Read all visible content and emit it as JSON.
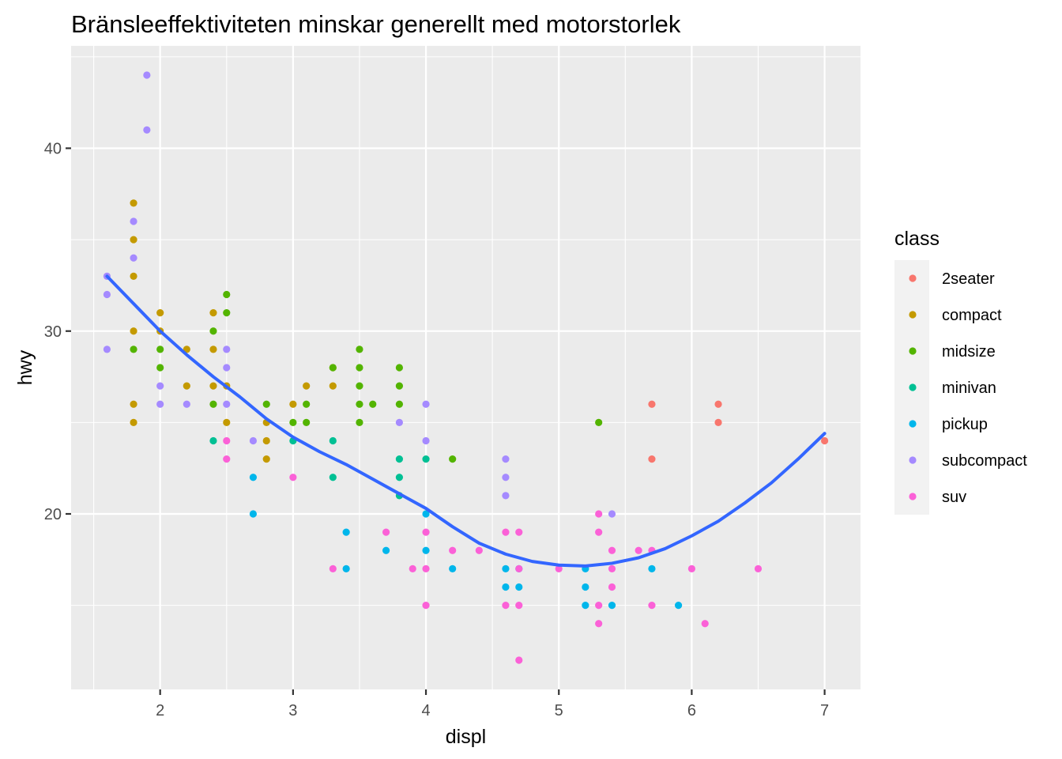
{
  "chart_data": {
    "type": "scatter",
    "title": "Bränsleeffektiviteten minskar generellt med motorstorlek",
    "xlabel": "displ",
    "ylabel": "hwy",
    "xlim": [
      1.33,
      7.27
    ],
    "ylim": [
      10.4,
      45.6
    ],
    "x_ticks": [
      2,
      3,
      4,
      5,
      6,
      7
    ],
    "y_ticks": [
      20,
      30,
      40
    ],
    "grid": true,
    "legend": {
      "title": "class",
      "position": "right"
    },
    "series": [
      {
        "name": "2seater",
        "color": "#F8766D",
        "points": [
          [
            5.7,
            26
          ],
          [
            5.7,
            23
          ],
          [
            6.2,
            26
          ],
          [
            6.2,
            25
          ],
          [
            7.0,
            24
          ]
        ]
      },
      {
        "name": "compact",
        "color": "#C49A00",
        "points": [
          [
            1.8,
            37
          ],
          [
            1.8,
            35
          ],
          [
            1.8,
            33
          ],
          [
            1.8,
            30
          ],
          [
            1.8,
            26
          ],
          [
            1.8,
            25
          ],
          [
            2.0,
            31
          ],
          [
            2.0,
            30
          ],
          [
            2.2,
            29
          ],
          [
            2.2,
            27
          ],
          [
            2.4,
            31
          ],
          [
            2.4,
            29
          ],
          [
            2.4,
            27
          ],
          [
            2.5,
            27
          ],
          [
            2.5,
            25
          ],
          [
            2.8,
            25
          ],
          [
            2.8,
            24
          ],
          [
            2.8,
            23
          ],
          [
            3.0,
            26
          ],
          [
            3.1,
            27
          ],
          [
            3.3,
            28
          ],
          [
            3.3,
            27
          ]
        ]
      },
      {
        "name": "midsize",
        "color": "#53B400",
        "points": [
          [
            1.8,
            29
          ],
          [
            2.0,
            29
          ],
          [
            2.0,
            28
          ],
          [
            2.4,
            30
          ],
          [
            2.4,
            26
          ],
          [
            2.5,
            32
          ],
          [
            2.5,
            31
          ],
          [
            2.8,
            26
          ],
          [
            3.0,
            25
          ],
          [
            3.1,
            26
          ],
          [
            3.1,
            25
          ],
          [
            3.3,
            28
          ],
          [
            3.5,
            29
          ],
          [
            3.5,
            28
          ],
          [
            3.5,
            27
          ],
          [
            3.5,
            26
          ],
          [
            3.5,
            25
          ],
          [
            3.6,
            26
          ],
          [
            3.8,
            28
          ],
          [
            3.8,
            27
          ],
          [
            3.8,
            26
          ],
          [
            4.2,
            23
          ],
          [
            5.3,
            25
          ]
        ]
      },
      {
        "name": "minivan",
        "color": "#00C094",
        "points": [
          [
            2.4,
            24
          ],
          [
            3.0,
            24
          ],
          [
            3.3,
            24
          ],
          [
            3.3,
            22
          ],
          [
            3.8,
            23
          ],
          [
            3.8,
            22
          ],
          [
            3.8,
            21
          ],
          [
            4.0,
            23
          ]
        ]
      },
      {
        "name": "pickup",
        "color": "#00B6EB",
        "points": [
          [
            2.7,
            22
          ],
          [
            2.7,
            20
          ],
          [
            3.4,
            19
          ],
          [
            3.4,
            17
          ],
          [
            3.7,
            18
          ],
          [
            4.0,
            20
          ],
          [
            4.0,
            18
          ],
          [
            4.2,
            17
          ],
          [
            4.6,
            17
          ],
          [
            4.6,
            16
          ],
          [
            4.7,
            17
          ],
          [
            4.7,
            16
          ],
          [
            5.2,
            17
          ],
          [
            5.2,
            16
          ],
          [
            5.2,
            15
          ],
          [
            5.4,
            15
          ],
          [
            5.7,
            17
          ],
          [
            5.9,
            15
          ]
        ]
      },
      {
        "name": "subcompact",
        "color": "#A58AFF",
        "points": [
          [
            1.6,
            33
          ],
          [
            1.6,
            32
          ],
          [
            1.6,
            29
          ],
          [
            1.8,
            36
          ],
          [
            1.8,
            34
          ],
          [
            1.9,
            44
          ],
          [
            1.9,
            41
          ],
          [
            2.0,
            27
          ],
          [
            2.0,
            26
          ],
          [
            2.2,
            26
          ],
          [
            2.5,
            29
          ],
          [
            2.5,
            28
          ],
          [
            2.5,
            26
          ],
          [
            2.7,
            24
          ],
          [
            3.8,
            25
          ],
          [
            4.0,
            26
          ],
          [
            4.0,
            24
          ],
          [
            4.6,
            23
          ],
          [
            4.6,
            22
          ],
          [
            4.6,
            21
          ],
          [
            5.4,
            20
          ]
        ]
      },
      {
        "name": "suv",
        "color": "#FB61D7",
        "points": [
          [
            2.5,
            24
          ],
          [
            2.5,
            23
          ],
          [
            3.0,
            22
          ],
          [
            3.3,
            17
          ],
          [
            3.7,
            19
          ],
          [
            3.9,
            17
          ],
          [
            4.0,
            19
          ],
          [
            4.0,
            17
          ],
          [
            4.0,
            15
          ],
          [
            4.2,
            18
          ],
          [
            4.4,
            18
          ],
          [
            4.6,
            19
          ],
          [
            4.6,
            15
          ],
          [
            4.7,
            19
          ],
          [
            4.7,
            17
          ],
          [
            4.7,
            15
          ],
          [
            4.7,
            12
          ],
          [
            5.0,
            17
          ],
          [
            5.3,
            20
          ],
          [
            5.3,
            19
          ],
          [
            5.3,
            15
          ],
          [
            5.3,
            14
          ],
          [
            5.4,
            18
          ],
          [
            5.4,
            17
          ],
          [
            5.4,
            16
          ],
          [
            5.6,
            18
          ],
          [
            5.7,
            18
          ],
          [
            5.7,
            15
          ],
          [
            6.0,
            17
          ],
          [
            6.1,
            14
          ],
          [
            6.5,
            17
          ]
        ]
      }
    ],
    "smooth": {
      "color": "#3366ff",
      "points": [
        [
          1.6,
          33.0
        ],
        [
          1.8,
          31.5
        ],
        [
          2.0,
          30.0
        ],
        [
          2.2,
          28.7
        ],
        [
          2.4,
          27.5
        ],
        [
          2.6,
          26.4
        ],
        [
          2.8,
          25.2
        ],
        [
          3.0,
          24.2
        ],
        [
          3.2,
          23.4
        ],
        [
          3.4,
          22.7
        ],
        [
          3.6,
          21.9
        ],
        [
          3.8,
          21.1
        ],
        [
          4.0,
          20.3
        ],
        [
          4.2,
          19.3
        ],
        [
          4.4,
          18.4
        ],
        [
          4.6,
          17.8
        ],
        [
          4.8,
          17.4
        ],
        [
          5.0,
          17.2
        ],
        [
          5.2,
          17.15
        ],
        [
          5.4,
          17.3
        ],
        [
          5.6,
          17.6
        ],
        [
          5.8,
          18.1
        ],
        [
          6.0,
          18.8
        ],
        [
          6.2,
          19.6
        ],
        [
          6.4,
          20.6
        ],
        [
          6.6,
          21.7
        ],
        [
          6.8,
          23.0
        ],
        [
          7.0,
          24.4
        ]
      ]
    }
  }
}
